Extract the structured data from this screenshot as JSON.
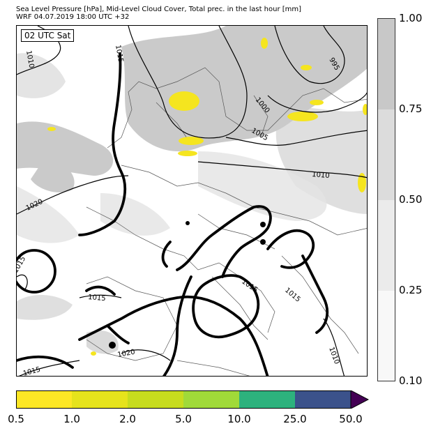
{
  "header": {
    "title_line1": "Sea Level Pressure [hPa], Mid-Level Cloud Cover, Total prec. in the last hour [mm]",
    "title_line2": "WRF 04.07.2019 18:00 UTC +32"
  },
  "map": {
    "valid_time_label": "02 UTC Sat",
    "isobar_labels": [
      "1015",
      "995",
      "1000",
      "1005",
      "1010",
      "1020",
      "1015",
      "1015",
      "1015",
      "1020",
      "1015",
      "1015",
      "1010",
      "1010"
    ],
    "colors": {
      "cloud": "#c8c8c8",
      "cloud_light": "#e3e3e3",
      "precip": "#f5e51f",
      "land_border": "#555555",
      "isobar": "#000000"
    }
  },
  "cloud_colorbar": {
    "ticks": [
      "1.00",
      "0.75",
      "0.50",
      "0.25",
      "0.10"
    ],
    "colors": [
      "#c8c8c8",
      "#dcdcdc",
      "#ebebeb",
      "#f8f8f8"
    ]
  },
  "precip_colorbar": {
    "ticks": [
      "0.5",
      "1.0",
      "2.0",
      "5.0",
      "10.0",
      "25.0",
      "50.0"
    ],
    "colors": [
      "#fde725",
      "#e6e31c",
      "#c7dc1e",
      "#a0da39",
      "#2db27d",
      "#3b528b",
      "#440154"
    ]
  }
}
